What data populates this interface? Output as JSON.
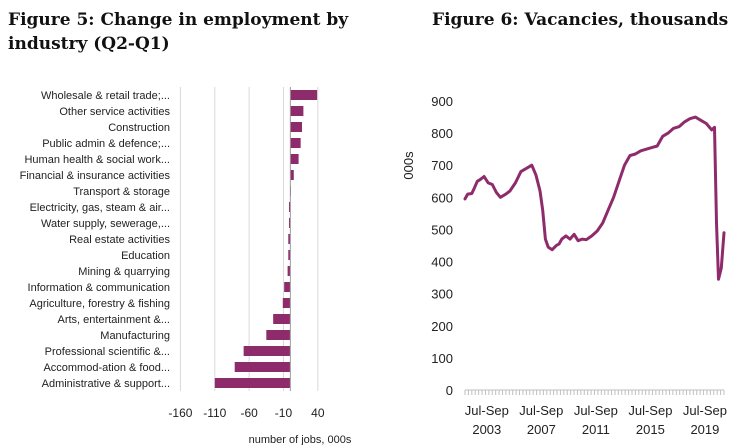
{
  "figure5": {
    "title": "Figure 5: Change in employment by industry (Q2-Q1)"
  },
  "figure6": {
    "title": "Figure 6: Vacancies, thousands"
  },
  "chart_data": [
    {
      "type": "bar",
      "orientation": "horizontal",
      "title": "Figure 5: Change in employment by industry (Q2-Q1)",
      "xlabel": "number of jobs, 000s",
      "ylabel": "",
      "xlim": [
        -165,
        65
      ],
      "xticks": [
        -160,
        -110,
        -60,
        -10,
        40
      ],
      "xtick_labels": [
        "-160",
        "-110",
        "-60",
        "-10",
        "40"
      ],
      "grid": "vertical",
      "color": "#8e2c6b",
      "categories": [
        "Wholesale & retail trade;...",
        "Other service activities",
        "Construction",
        "Public admin & defence;...",
        "Human health & social work...",
        "Financial & insurance activities",
        "Transport & storage",
        "Electricity, gas, steam & air...",
        "Water supply, sewerage,...",
        "Real estate activities",
        "Education",
        "Mining & quarrying",
        "Information & communication",
        "Agriculture, forestry & fishing",
        "Arts, entertainment &...",
        "Manufacturing",
        "Professional scientific &...",
        "Accommod-ation & food...",
        "Administrative & support..."
      ],
      "values": [
        39,
        19,
        17,
        15,
        12,
        5,
        0,
        -2,
        -2,
        -3,
        -3,
        -4,
        -9,
        -11,
        -25,
        -35,
        -68,
        -81,
        -110
      ]
    },
    {
      "type": "line",
      "title": "Figure 6: Vacancies, thousands",
      "xlabel": "",
      "ylabel": "000s",
      "ylim": [
        0,
        900
      ],
      "yticks": [
        0,
        100,
        200,
        300,
        400,
        500,
        600,
        700,
        800,
        900
      ],
      "xtick_labels": [
        [
          "Jul-Sep",
          "2003"
        ],
        [
          "Jul-Sep",
          "2007"
        ],
        [
          "Jul-Sep",
          "2011"
        ],
        [
          "Jul-Sep",
          "2015"
        ],
        [
          "Jul-Sep",
          "2019"
        ]
      ],
      "xtick_positions": [
        2003.5,
        2007.5,
        2011.5,
        2015.5,
        2019.5
      ],
      "xlim": [
        2001.9,
        2020.9
      ],
      "grid": false,
      "legend": "none",
      "color": "#8e2c6b",
      "series": [
        {
          "x": [
            2001.9,
            2002.1,
            2002.4,
            2002.6,
            2002.8,
            2003.0,
            2003.3,
            2003.6,
            2003.9,
            2004.2,
            2004.5,
            2004.9,
            2005.2,
            2005.6,
            2006.0,
            2006.4,
            2006.8,
            2007.1,
            2007.4,
            2007.6,
            2007.8,
            2008.0,
            2008.3,
            2008.6,
            2008.8,
            2009.0,
            2009.3,
            2009.6,
            2009.9,
            2010.2,
            2010.5,
            2010.8,
            2011.2,
            2011.6,
            2012.0,
            2012.4,
            2012.8,
            2013.2,
            2013.6,
            2014.0,
            2014.4,
            2014.8,
            2015.2,
            2015.6,
            2016.0,
            2016.4,
            2016.8,
            2017.2,
            2017.6,
            2018.0,
            2018.4,
            2018.8,
            2019.2,
            2019.6,
            2020.0,
            2020.2,
            2020.35,
            2020.5,
            2020.7,
            2020.9
          ],
          "y": [
            595,
            610,
            612,
            630,
            650,
            655,
            665,
            645,
            640,
            615,
            600,
            610,
            620,
            645,
            680,
            690,
            700,
            670,
            620,
            560,
            470,
            445,
            437,
            450,
            455,
            470,
            480,
            470,
            485,
            465,
            470,
            468,
            480,
            495,
            520,
            560,
            600,
            650,
            700,
            730,
            735,
            745,
            750,
            755,
            760,
            790,
            800,
            815,
            820,
            835,
            845,
            850,
            840,
            830,
            810,
            818,
            520,
            345,
            380,
            490
          ]
        }
      ]
    }
  ]
}
